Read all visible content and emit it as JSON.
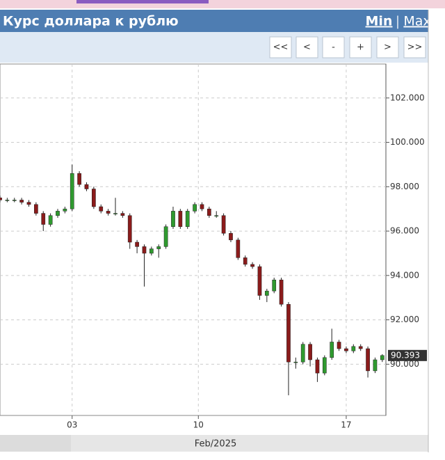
{
  "chart_data": {
    "type": "candlestick",
    "title": "Курс доллара к рублю",
    "x": [
      0,
      2,
      4,
      6,
      8,
      10,
      12,
      14,
      16,
      18,
      20,
      22,
      24,
      26,
      28,
      30,
      32,
      34,
      36,
      38,
      40,
      42,
      44,
      46,
      48,
      50,
      52,
      54,
      56,
      58,
      60,
      62,
      64,
      66,
      68,
      70,
      72,
      74,
      76,
      78,
      80,
      82,
      84,
      86,
      88,
      90,
      92,
      94,
      96,
      98,
      100,
      102,
      104,
      106
    ],
    "open": [
      97.5,
      97.4,
      97.4,
      97.4,
      97.3,
      97.2,
      96.8,
      96.3,
      96.7,
      96.9,
      97.0,
      98.6,
      98.1,
      97.9,
      97.1,
      96.9,
      96.8,
      96.8,
      96.7,
      95.5,
      95.3,
      95.0,
      95.2,
      95.3,
      96.2,
      96.9,
      96.2,
      96.9,
      97.2,
      97.0,
      96.7,
      96.7,
      95.9,
      95.6,
      94.8,
      94.5,
      94.4,
      93.1,
      93.3,
      93.8,
      92.7,
      90.1,
      90.1,
      90.9,
      90.2,
      89.6,
      90.3,
      91.0,
      90.7,
      90.6,
      90.8,
      90.7,
      89.7,
      90.2
    ],
    "high": [
      97.6,
      97.5,
      97.5,
      97.5,
      97.4,
      97.3,
      96.9,
      96.8,
      97.0,
      97.1,
      99.0,
      98.7,
      98.2,
      98.0,
      97.2,
      97.0,
      97.5,
      96.9,
      96.8,
      95.6,
      95.4,
      95.3,
      95.4,
      96.3,
      97.1,
      97.0,
      97.0,
      97.3,
      97.3,
      97.1,
      96.9,
      96.8,
      96.0,
      95.7,
      94.9,
      94.6,
      94.5,
      93.4,
      93.9,
      93.9,
      92.8,
      90.3,
      91.0,
      91.0,
      90.3,
      90.4,
      91.6,
      91.1,
      90.8,
      90.9,
      90.9,
      90.8,
      90.3,
      90.45
    ],
    "low": [
      97.3,
      97.3,
      97.3,
      97.2,
      97.1,
      96.7,
      96.0,
      96.2,
      96.6,
      96.8,
      96.9,
      98.0,
      97.8,
      97.0,
      96.8,
      96.7,
      96.7,
      96.6,
      95.2,
      95.0,
      93.5,
      94.9,
      94.8,
      95.2,
      96.1,
      96.1,
      96.1,
      96.8,
      96.9,
      96.6,
      96.6,
      95.8,
      95.5,
      94.7,
      94.4,
      94.3,
      92.9,
      92.8,
      93.2,
      92.6,
      88.6,
      89.8,
      90.0,
      89.9,
      89.2,
      89.5,
      90.2,
      90.6,
      90.5,
      90.5,
      90.6,
      89.4,
      89.6,
      90.1
    ],
    "close": [
      97.4,
      97.4,
      97.4,
      97.3,
      97.2,
      96.8,
      96.3,
      96.7,
      96.9,
      97.0,
      98.6,
      98.1,
      97.9,
      97.1,
      96.9,
      96.8,
      96.8,
      96.7,
      95.5,
      95.3,
      95.0,
      95.2,
      95.3,
      96.2,
      96.9,
      96.2,
      96.9,
      97.2,
      97.0,
      96.7,
      96.7,
      95.9,
      95.6,
      94.8,
      94.5,
      94.4,
      93.1,
      93.3,
      93.8,
      92.7,
      90.1,
      90.1,
      90.9,
      90.2,
      89.6,
      90.3,
      91.0,
      90.7,
      90.6,
      90.8,
      90.7,
      89.7,
      90.2,
      90.393
    ],
    "up_color": "#2f9a2f",
    "down_color": "#8b1b1b",
    "xlim": [
      0,
      107
    ],
    "xticks": [
      {
        "value": 20,
        "label": "03"
      },
      {
        "value": 55,
        "label": "10"
      },
      {
        "value": 96,
        "label": "17"
      }
    ],
    "x_period_label": "Feb/2025",
    "ylim": [
      87.69,
      103.53
    ],
    "yticks": [
      {
        "value": 90,
        "label": "90.000"
      },
      {
        "value": 92,
        "label": "92.000"
      },
      {
        "value": 94,
        "label": "94.000"
      },
      {
        "value": 96,
        "label": "96.000"
      },
      {
        "value": 98,
        "label": "98.000"
      },
      {
        "value": 100,
        "label": "100.000"
      },
      {
        "value": 102,
        "label": "102.000"
      }
    ],
    "last_price": {
      "value": 90.393,
      "label": "90.393"
    },
    "grid": true
  },
  "header": {
    "links": [
      "Min",
      "Max"
    ],
    "separator": "|"
  },
  "toolbar": {
    "buttons": [
      "<<",
      "<",
      "-",
      "+",
      ">",
      ">>"
    ]
  }
}
